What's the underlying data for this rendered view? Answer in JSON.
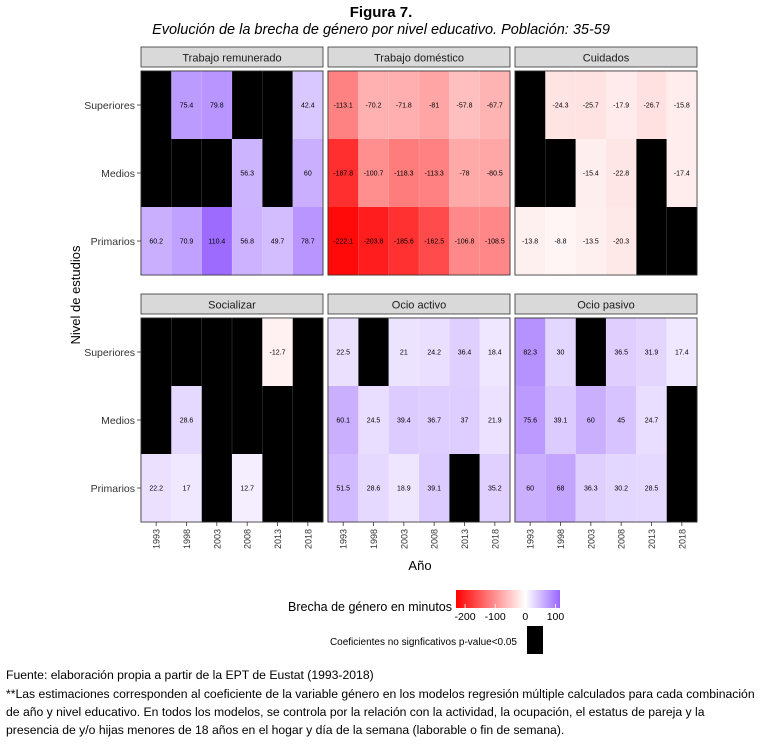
{
  "figure": {
    "title": "Figura 7.",
    "subtitle": "Evolución de la brecha de género por nivel educativo. Población: 35-59"
  },
  "chart_data": {
    "type": "heatmap",
    "xlabel": "Año",
    "ylabel": "Nivel de estudios",
    "years": [
      "1993",
      "1998",
      "2003",
      "2008",
      "2013",
      "2018"
    ],
    "levels": [
      "Superiores",
      "Medios",
      "Primarios"
    ],
    "value_range": [
      -230,
      115
    ],
    "legend": {
      "title": "Brecha de género en minutos",
      "ticks": [
        -200,
        -100,
        0,
        100
      ],
      "tick_labels": [
        "-200",
        "-100",
        "0",
        "100"
      ],
      "low_color": "#ff0000",
      "mid_color": "#ffffff",
      "high_color": "#9966ff",
      "nonsig_label": "Coeficientes no signficativos p-value<0.05",
      "nonsig_color": "#000000"
    },
    "panels": [
      {
        "name": "Trabajo remunerado",
        "values": [
          [
            null,
            75.4,
            79.8,
            null,
            null,
            42.4
          ],
          [
            null,
            null,
            null,
            56.3,
            null,
            60
          ],
          [
            60.2,
            70.9,
            110.4,
            56.8,
            49.7,
            78.7
          ]
        ],
        "labels": [
          [
            "",
            "75.4",
            "79.8",
            "",
            "",
            "42.4"
          ],
          [
            "",
            "",
            "",
            "56.3",
            "",
            "60"
          ],
          [
            "60.2",
            "70.9",
            "110.4",
            "56.8",
            "49.7",
            "78.7"
          ]
        ]
      },
      {
        "name": "Trabajo doméstico",
        "values": [
          [
            -113.1,
            -70.2,
            -71.8,
            -81,
            -57.8,
            -67.7
          ],
          [
            -187.8,
            -100.7,
            -118.3,
            -113.3,
            -78,
            -80.5
          ],
          [
            -222.1,
            -203.8,
            -185.6,
            -162.5,
            -106.8,
            -108.5
          ]
        ],
        "labels": [
          [
            "-113.1",
            "-70.2",
            "-71.8",
            "-81",
            "-57.8",
            "-67.7"
          ],
          [
            "-187.8",
            "-100.7",
            "-118.3",
            "-113.3",
            "-78",
            "-80.5"
          ],
          [
            "-222.1",
            "-203.8",
            "-185.6",
            "-162.5",
            "-106.8",
            "-108.5"
          ]
        ]
      },
      {
        "name": "Cuidados",
        "values": [
          [
            null,
            -24.3,
            -25.7,
            -17.9,
            -26.7,
            -15.8
          ],
          [
            null,
            null,
            -15.4,
            -22.8,
            null,
            -17.4
          ],
          [
            -13.8,
            -8.8,
            -13.5,
            -20.3,
            null,
            null
          ]
        ],
        "labels": [
          [
            "",
            "-24.3",
            "-25.7",
            "-17.9",
            "-26.7",
            "-15.8"
          ],
          [
            "",
            "",
            "-15.4",
            "-22.8",
            "",
            "-17.4"
          ],
          [
            "-13.8",
            "-8.8",
            "-13.5",
            "-20.3",
            "",
            ""
          ]
        ]
      },
      {
        "name": "Socializar",
        "values": [
          [
            null,
            null,
            null,
            null,
            -12.7,
            null
          ],
          [
            null,
            28.6,
            null,
            null,
            null,
            null
          ],
          [
            22.2,
            17,
            null,
            12.7,
            null,
            null
          ]
        ],
        "labels": [
          [
            "",
            "",
            "",
            "",
            "-12.7",
            ""
          ],
          [
            "",
            "28.6",
            "",
            "",
            "",
            ""
          ],
          [
            "22.2",
            "17",
            "",
            "12.7",
            "",
            ""
          ]
        ]
      },
      {
        "name": "Ocio activo",
        "values": [
          [
            22.5,
            null,
            21,
            24.2,
            36.4,
            18.4
          ],
          [
            60.1,
            24.5,
            39.4,
            36.7,
            37,
            21.9
          ],
          [
            51.5,
            28.6,
            18.9,
            39.1,
            null,
            35.2
          ]
        ],
        "labels": [
          [
            "22.5",
            "",
            "21",
            "24.2",
            "36.4",
            "18.4"
          ],
          [
            "60.1",
            "24.5",
            "39.4",
            "36.7",
            "37",
            "21.9"
          ],
          [
            "51.5",
            "28.6",
            "18.9",
            "39.1",
            "",
            "35.2"
          ]
        ]
      },
      {
        "name": "Ocio pasivo",
        "values": [
          [
            82.3,
            30,
            null,
            36.5,
            31.9,
            17.4
          ],
          [
            75.6,
            39.1,
            60,
            45,
            24.7,
            null
          ],
          [
            60,
            68,
            36.3,
            30.2,
            28.5,
            null
          ]
        ],
        "labels": [
          [
            "82.3",
            "30",
            "",
            "36.5",
            "31.9",
            "17.4"
          ],
          [
            "75.6",
            "39.1",
            "60",
            "45",
            "24.7",
            ""
          ],
          [
            "60",
            "68",
            "36.3",
            "30.2",
            "28.5",
            ""
          ]
        ]
      }
    ]
  },
  "footnotes": {
    "source": "Fuente: elaboración propia a partir de la EPT de Eustat (1993-2018)",
    "note": "**Las estimaciones corresponden al coeficiente de la variable género en los modelos regresión múltiple calculados para cada combinación de año y nivel educativo. En todos los modelos, se controla por la relación con la actividad, la ocupación, el estatus de pareja y la presencia de y/o hijas menores de 18 años en el hogar y día de la semana (laborable o fin de semana)."
  }
}
